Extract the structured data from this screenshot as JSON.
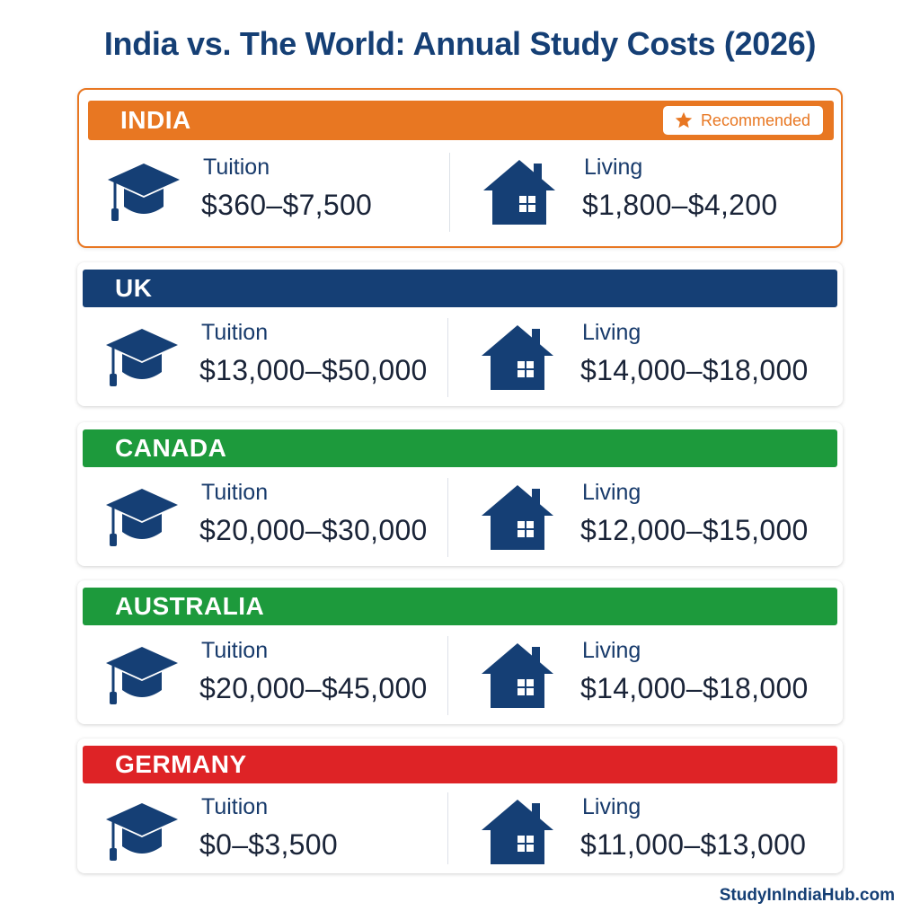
{
  "title": "India vs. The World: Annual Study Costs (2026)",
  "badge_label": "Recommended",
  "colors": {
    "india": "#e87722",
    "uk": "#153f75",
    "canada": "#1d9a3c",
    "australia": "#1d9a3c",
    "germany": "#de2326",
    "icon": "#153f75"
  },
  "icons": {
    "tuition": "graduation-cap-icon",
    "living": "house-icon",
    "badge": "star-icon"
  },
  "countries": [
    {
      "name": "INDIA",
      "tuition_label": "Tuition",
      "tuition_value": "$360–$7,500",
      "living_label": "Living",
      "living_value": "$1,800–$4,200"
    },
    {
      "name": "UK",
      "tuition_label": "Tuition",
      "tuition_value": "$13,000–$50,000",
      "living_label": "Living",
      "living_value": "$14,000–$18,000"
    },
    {
      "name": "CANADA",
      "tuition_label": "Tuition",
      "tuition_value": "$20,000–$30,000",
      "living_label": "Living",
      "living_value": "$12,000–$15,000"
    },
    {
      "name": "AUSTRALIA",
      "tuition_label": "Tuition",
      "tuition_value": "$20,000–$45,000",
      "living_label": "Living",
      "living_value": "$14,000–$18,000"
    },
    {
      "name": "GERMANY",
      "tuition_label": "Tuition",
      "tuition_value": "$0–$3,500",
      "living_label": "Living",
      "living_value": "$11,000–$13,000"
    }
  ],
  "footer": "StudyInIndiaHub.com"
}
